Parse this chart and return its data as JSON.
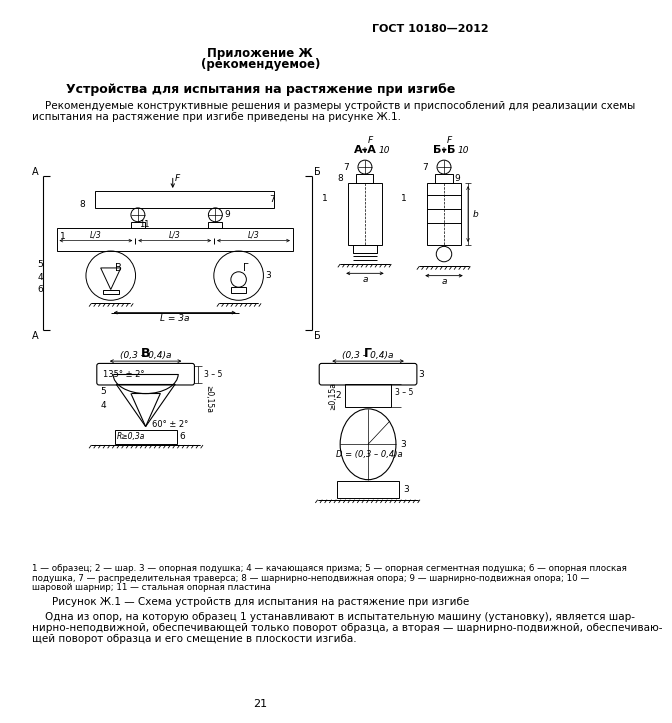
{
  "page_number": "21",
  "header_right": "ГОСТ 10180—2012",
  "title_line1": "Приложение Ж",
  "title_line2": "(рекомендуемое)",
  "section_title": "Устройства для испытания на растяжение при изгибе",
  "para1_line1": "    Рекомендуемые конструктивные решения и размеры устройств и приспособлений для реализации схемы",
  "para1_line2": "испытания на растяжение при изгибе приведены на рисунке Ж.1.",
  "legend_line1": "1 — образец; 2 — шар. 3 — опорная подушка; 4 — качающаяся призма; 5 — опорная сегментная подушка; 6 — опорная плоская",
  "legend_line2": "подушка, 7 — распределительная траверса; 8 — шарнирно-неподвижная опора; 9 — шарнирно-подвижная опора; 10 —",
  "legend_line3": "шаровой шарнир; 11 — стальная опорная пластина",
  "fig_caption": "Рисунок Ж.1 — Схема устройств для испытания на растяжение при изгибе",
  "para2_line1": "    Одна из опор, на которую образец 1 устанавливают в испытательную машину (установку), является шар-",
  "para2_line2": "нирно-неподвижной, обеспечивающей только поворот образца, а вторая — шарнирно-подвижной, обеспечиваю-",
  "para2_line3": "щей поворот образца и его смещение в плоскости изгиба.",
  "bg": "#ffffff",
  "lc": "#000000"
}
